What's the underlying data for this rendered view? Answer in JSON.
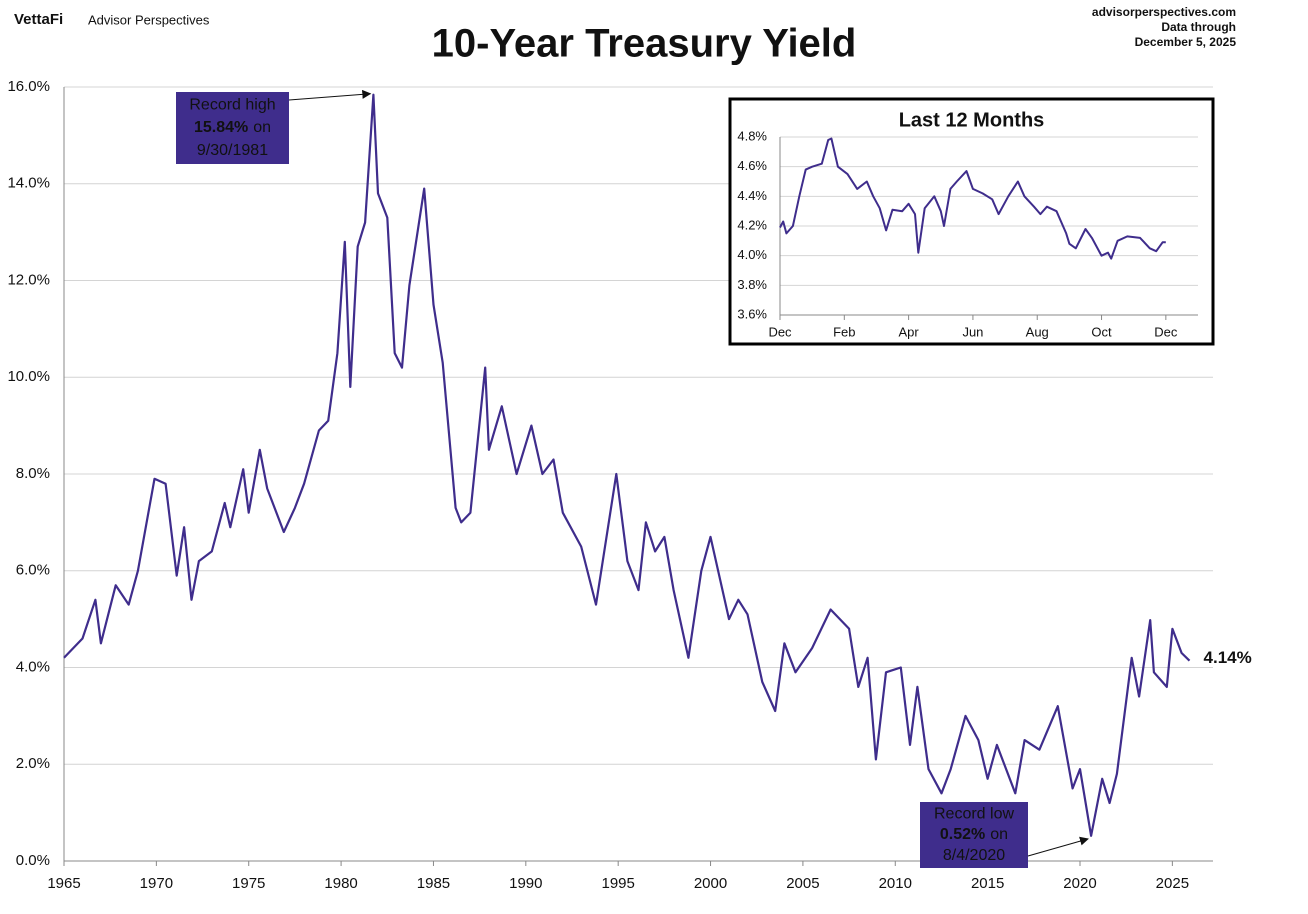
{
  "header": {
    "brand": "VettaFi",
    "brand_sub": "Advisor Perspectives",
    "site": "advisorperspectives.com",
    "data_through": "Data through",
    "date": "December 5, 2025"
  },
  "chart_data": [
    {
      "type": "line",
      "title": "10-Year Treasury Yield",
      "x": [
        1965.0,
        1966.0,
        1966.7,
        1967.0,
        1967.8,
        1968.5,
        1969.0,
        1969.9,
        1970.5,
        1971.1,
        1971.5,
        1971.9,
        1972.3,
        1973.0,
        1973.7,
        1974.0,
        1974.7,
        1975.0,
        1975.6,
        1976.0,
        1976.9,
        1977.5,
        1978.0,
        1978.8,
        1979.3,
        1979.8,
        1980.2,
        1980.5,
        1980.9,
        1981.3,
        1981.75,
        1982.0,
        1982.5,
        1982.9,
        1983.3,
        1983.7,
        1984.5,
        1985.0,
        1985.5,
        1986.2,
        1986.5,
        1987.0,
        1987.8,
        1988.0,
        1988.7,
        1989.5,
        1990.3,
        1990.9,
        1991.5,
        1992.0,
        1993.0,
        1993.8,
        1994.9,
        1995.5,
        1996.1,
        1996.5,
        1997.0,
        1997.5,
        1998.0,
        1998.8,
        1999.5,
        2000.0,
        2001.0,
        2001.5,
        2002.0,
        2002.8,
        2003.5,
        2004.0,
        2004.6,
        2005.5,
        2006.5,
        2007.5,
        2008.0,
        2008.5,
        2008.95,
        2009.5,
        2010.3,
        2010.8,
        2011.2,
        2011.8,
        2012.5,
        2013.0,
        2013.8,
        2014.5,
        2015.0,
        2015.5,
        2016.5,
        2017.0,
        2017.8,
        2018.8,
        2019.6,
        2020.0,
        2020.6,
        2021.2,
        2021.6,
        2022.0,
        2022.8,
        2023.2,
        2023.8,
        2024.0,
        2024.7,
        2025.0,
        2025.5,
        2025.93
      ],
      "series": [
        {
          "color": "#3f2d8c",
          "values": [
            4.2,
            4.6,
            5.4,
            4.5,
            5.7,
            5.3,
            6.0,
            7.9,
            7.8,
            5.9,
            6.9,
            5.4,
            6.2,
            6.4,
            7.4,
            6.9,
            8.1,
            7.2,
            8.5,
            7.7,
            6.8,
            7.3,
            7.8,
            8.9,
            9.1,
            10.5,
            12.8,
            9.8,
            12.7,
            13.2,
            15.84,
            13.8,
            13.3,
            10.5,
            10.2,
            11.9,
            13.9,
            11.5,
            10.3,
            7.3,
            7.0,
            7.2,
            10.2,
            8.5,
            9.4,
            8.0,
            9.0,
            8.0,
            8.3,
            7.2,
            6.5,
            5.3,
            8.0,
            6.2,
            5.6,
            7.0,
            6.4,
            6.7,
            5.6,
            4.2,
            6.0,
            6.7,
            5.0,
            5.4,
            5.1,
            3.7,
            3.1,
            4.5,
            3.9,
            4.4,
            5.2,
            4.8,
            3.6,
            4.2,
            2.1,
            3.9,
            4.0,
            2.4,
            3.6,
            1.9,
            1.4,
            1.9,
            3.0,
            2.5,
            1.7,
            2.4,
            1.4,
            2.5,
            2.3,
            3.2,
            1.5,
            1.9,
            0.52,
            1.7,
            1.2,
            1.8,
            4.2,
            3.4,
            4.98,
            3.9,
            3.6,
            4.8,
            4.3,
            4.14
          ]
        }
      ],
      "last_value_label": "4.14%",
      "xlim": [
        1965,
        2027.2
      ],
      "xticks": [
        1965,
        1970,
        1975,
        1980,
        1985,
        1990,
        1995,
        2000,
        2005,
        2010,
        2015,
        2020,
        2025
      ],
      "ylim": [
        0,
        16
      ],
      "yticks": [
        {
          "value": 0,
          "label": "0.0%"
        },
        {
          "value": 2,
          "label": "2.0%"
        },
        {
          "value": 4,
          "label": "4.0%"
        },
        {
          "value": 6,
          "label": "6.0%"
        },
        {
          "value": 8,
          "label": "8.0%"
        },
        {
          "value": 10,
          "label": "10.0%"
        },
        {
          "value": 12,
          "label": "12.0%"
        },
        {
          "value": 14,
          "label": "14.0%"
        },
        {
          "value": 16,
          "label": "16.0%"
        }
      ],
      "grid": true,
      "annotations": [
        {
          "line1": "Record high",
          "bold": "15.84%",
          "after": "on",
          "line3": "9/30/1981"
        },
        {
          "line1": "Record low",
          "bold": "0.52%",
          "after": "on",
          "line3": "8/4/2020"
        }
      ]
    },
    {
      "type": "line",
      "title": "Last 12 Months",
      "x": [
        0,
        0.1,
        0.2,
        0.4,
        0.6,
        0.8,
        1.0,
        1.3,
        1.5,
        1.6,
        1.8,
        2.1,
        2.4,
        2.7,
        2.9,
        3.1,
        3.3,
        3.5,
        3.8,
        4.0,
        4.2,
        4.3,
        4.5,
        4.8,
        5.0,
        5.1,
        5.3,
        5.5,
        5.8,
        6.0,
        6.3,
        6.6,
        6.8,
        7.1,
        7.4,
        7.6,
        7.9,
        8.1,
        8.3,
        8.6,
        8.9,
        9.0,
        9.2,
        9.5,
        9.7,
        10.0,
        10.2,
        10.3,
        10.5,
        10.8,
        11.2,
        11.5,
        11.7,
        11.9,
        12.0
      ],
      "series": [
        {
          "color": "#3f2d8c",
          "values": [
            4.19,
            4.23,
            4.15,
            4.2,
            4.4,
            4.58,
            4.6,
            4.62,
            4.78,
            4.79,
            4.6,
            4.55,
            4.45,
            4.5,
            4.4,
            4.32,
            4.17,
            4.31,
            4.3,
            4.35,
            4.28,
            4.02,
            4.32,
            4.4,
            4.3,
            4.2,
            4.45,
            4.5,
            4.57,
            4.45,
            4.42,
            4.38,
            4.28,
            4.4,
            4.5,
            4.4,
            4.33,
            4.28,
            4.33,
            4.3,
            4.15,
            4.08,
            4.05,
            4.18,
            4.12,
            4.0,
            4.02,
            3.98,
            4.1,
            4.13,
            4.12,
            4.05,
            4.03,
            4.09,
            4.09
          ]
        }
      ],
      "xlim": [
        0,
        13
      ],
      "xticks": [
        {
          "value": 0,
          "label": "Dec"
        },
        {
          "value": 2,
          "label": "Feb"
        },
        {
          "value": 4,
          "label": "Apr"
        },
        {
          "value": 6,
          "label": "Jun"
        },
        {
          "value": 8,
          "label": "Aug"
        },
        {
          "value": 10,
          "label": "Oct"
        },
        {
          "value": 12,
          "label": "Dec"
        }
      ],
      "ylim": [
        3.6,
        4.8
      ],
      "yticks": [
        {
          "value": 3.6,
          "label": "3.6%"
        },
        {
          "value": 3.8,
          "label": "3.8%"
        },
        {
          "value": 4.0,
          "label": "4.0%"
        },
        {
          "value": 4.2,
          "label": "4.2%"
        },
        {
          "value": 4.4,
          "label": "4.4%"
        },
        {
          "value": 4.6,
          "label": "4.6%"
        },
        {
          "value": 4.8,
          "label": "4.8%"
        }
      ],
      "grid": true
    }
  ]
}
